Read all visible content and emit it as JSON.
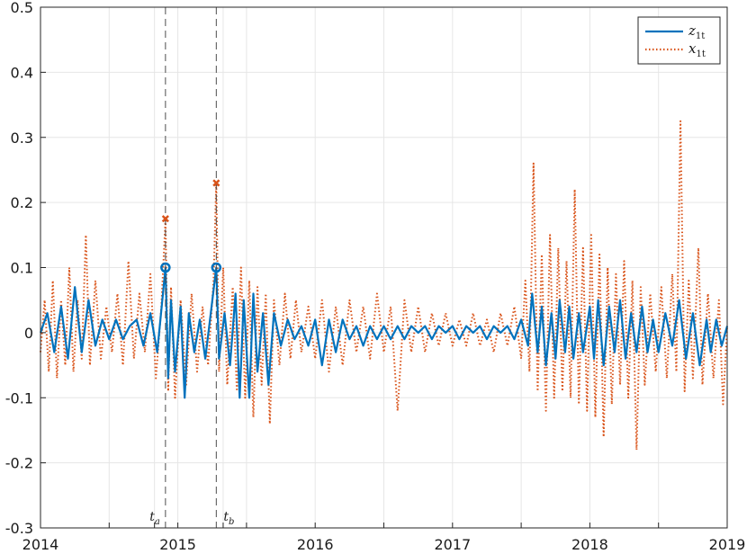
{
  "chart_data": {
    "type": "line",
    "x_start": 2014,
    "x_end": 2019,
    "ylim": [
      -0.3,
      0.5
    ],
    "xticks": [
      {
        "value": 2014,
        "label": "2014"
      },
      {
        "value": 2015,
        "label": "2015"
      },
      {
        "value": 2016,
        "label": "2016"
      },
      {
        "value": 2017,
        "label": "2017"
      },
      {
        "value": 2018,
        "label": "2018"
      },
      {
        "value": 2019,
        "label": "2019"
      }
    ],
    "minor_xticks": [
      2014.5,
      2014.83,
      2015.33,
      2015.5,
      2016.5,
      2017.5,
      2018.5
    ],
    "yticks": [
      {
        "value": -0.3,
        "label": "-0.3"
      },
      {
        "value": -0.2,
        "label": "-0.2"
      },
      {
        "value": -0.1,
        "label": "-0.1"
      },
      {
        "value": 0,
        "label": "0"
      },
      {
        "value": 0.1,
        "label": "0.1"
      },
      {
        "value": 0.2,
        "label": "0.2"
      },
      {
        "value": 0.3,
        "label": "0.3"
      },
      {
        "value": 0.4,
        "label": "0.4"
      },
      {
        "value": 0.5,
        "label": "0.5"
      }
    ],
    "grid": true,
    "legend_position": "top-right",
    "series": [
      {
        "name_base": "z",
        "name_sub": "1t",
        "color": "#0072BD",
        "style": "solid",
        "points": [
          [
            2014.0,
            0.0
          ],
          [
            2014.05,
            0.03
          ],
          [
            2014.1,
            -0.03
          ],
          [
            2014.15,
            0.04
          ],
          [
            2014.2,
            -0.04
          ],
          [
            2014.25,
            0.07
          ],
          [
            2014.3,
            -0.03
          ],
          [
            2014.35,
            0.05
          ],
          [
            2014.4,
            -0.02
          ],
          [
            2014.45,
            0.02
          ],
          [
            2014.5,
            -0.01
          ],
          [
            2014.55,
            0.02
          ],
          [
            2014.6,
            -0.01
          ],
          [
            2014.65,
            0.01
          ],
          [
            2014.7,
            0.02
          ],
          [
            2014.75,
            -0.02
          ],
          [
            2014.8,
            0.03
          ],
          [
            2014.85,
            -0.03
          ],
          [
            2014.91,
            0.1
          ],
          [
            2014.93,
            -0.07
          ],
          [
            2014.95,
            0.05
          ],
          [
            2014.98,
            -0.06
          ],
          [
            2015.02,
            0.04
          ],
          [
            2015.05,
            -0.1
          ],
          [
            2015.08,
            0.03
          ],
          [
            2015.12,
            -0.03
          ],
          [
            2015.16,
            0.02
          ],
          [
            2015.2,
            -0.04
          ],
          [
            2015.24,
            0.03
          ],
          [
            2015.28,
            0.1
          ],
          [
            2015.3,
            -0.04
          ],
          [
            2015.34,
            0.03
          ],
          [
            2015.38,
            -0.05
          ],
          [
            2015.42,
            0.06
          ],
          [
            2015.45,
            -0.1
          ],
          [
            2015.48,
            0.05
          ],
          [
            2015.52,
            -0.1
          ],
          [
            2015.55,
            0.06
          ],
          [
            2015.58,
            -0.06
          ],
          [
            2015.62,
            0.03
          ],
          [
            2015.66,
            -0.08
          ],
          [
            2015.7,
            0.03
          ],
          [
            2015.75,
            -0.02
          ],
          [
            2015.8,
            0.02
          ],
          [
            2015.85,
            -0.01
          ],
          [
            2015.9,
            0.01
          ],
          [
            2015.95,
            -0.02
          ],
          [
            2016.0,
            0.02
          ],
          [
            2016.05,
            -0.05
          ],
          [
            2016.1,
            0.02
          ],
          [
            2016.15,
            -0.03
          ],
          [
            2016.2,
            0.02
          ],
          [
            2016.25,
            -0.01
          ],
          [
            2016.3,
            0.01
          ],
          [
            2016.35,
            -0.02
          ],
          [
            2016.4,
            0.01
          ],
          [
            2016.45,
            -0.01
          ],
          [
            2016.5,
            0.01
          ],
          [
            2016.55,
            -0.01
          ],
          [
            2016.6,
            0.01
          ],
          [
            2016.65,
            -0.01
          ],
          [
            2016.7,
            0.01
          ],
          [
            2016.75,
            0.0
          ],
          [
            2016.8,
            0.01
          ],
          [
            2016.85,
            -0.01
          ],
          [
            2016.9,
            0.01
          ],
          [
            2016.95,
            0.0
          ],
          [
            2017.0,
            0.01
          ],
          [
            2017.05,
            -0.01
          ],
          [
            2017.1,
            0.01
          ],
          [
            2017.15,
            0.0
          ],
          [
            2017.2,
            0.01
          ],
          [
            2017.25,
            -0.01
          ],
          [
            2017.3,
            0.01
          ],
          [
            2017.35,
            0.0
          ],
          [
            2017.4,
            0.01
          ],
          [
            2017.45,
            -0.01
          ],
          [
            2017.5,
            0.02
          ],
          [
            2017.55,
            -0.02
          ],
          [
            2017.58,
            0.06
          ],
          [
            2017.62,
            -0.03
          ],
          [
            2017.65,
            0.04
          ],
          [
            2017.68,
            -0.05
          ],
          [
            2017.72,
            0.03
          ],
          [
            2017.75,
            -0.04
          ],
          [
            2017.78,
            0.05
          ],
          [
            2017.82,
            -0.03
          ],
          [
            2017.85,
            0.04
          ],
          [
            2017.88,
            -0.04
          ],
          [
            2017.92,
            0.03
          ],
          [
            2017.95,
            -0.03
          ],
          [
            2018.0,
            0.04
          ],
          [
            2018.03,
            -0.04
          ],
          [
            2018.06,
            0.05
          ],
          [
            2018.1,
            -0.05
          ],
          [
            2018.14,
            0.04
          ],
          [
            2018.18,
            -0.03
          ],
          [
            2018.22,
            0.05
          ],
          [
            2018.26,
            -0.04
          ],
          [
            2018.3,
            0.03
          ],
          [
            2018.34,
            -0.03
          ],
          [
            2018.38,
            0.04
          ],
          [
            2018.42,
            -0.03
          ],
          [
            2018.46,
            0.02
          ],
          [
            2018.5,
            -0.03
          ],
          [
            2018.55,
            0.03
          ],
          [
            2018.6,
            -0.02
          ],
          [
            2018.65,
            0.05
          ],
          [
            2018.7,
            -0.04
          ],
          [
            2018.75,
            0.03
          ],
          [
            2018.8,
            -0.05
          ],
          [
            2018.85,
            0.02
          ],
          [
            2018.88,
            -0.03
          ],
          [
            2018.92,
            0.02
          ],
          [
            2018.96,
            -0.02
          ],
          [
            2019.0,
            0.01
          ]
        ]
      },
      {
        "name_base": "x",
        "name_sub": "1t",
        "color": "#D95319",
        "style": "dotted",
        "points": [
          [
            2014.0,
            -0.03
          ],
          [
            2014.03,
            0.05
          ],
          [
            2014.06,
            -0.06
          ],
          [
            2014.09,
            0.08
          ],
          [
            2014.12,
            -0.07
          ],
          [
            2014.15,
            0.05
          ],
          [
            2014.18,
            -0.05
          ],
          [
            2014.21,
            0.1
          ],
          [
            2014.24,
            -0.06
          ],
          [
            2014.27,
            0.05
          ],
          [
            2014.3,
            -0.04
          ],
          [
            2014.33,
            0.15
          ],
          [
            2014.36,
            -0.05
          ],
          [
            2014.4,
            0.08
          ],
          [
            2014.44,
            -0.04
          ],
          [
            2014.48,
            0.04
          ],
          [
            2014.52,
            -0.03
          ],
          [
            2014.56,
            0.06
          ],
          [
            2014.6,
            -0.05
          ],
          [
            2014.64,
            0.11
          ],
          [
            2014.68,
            -0.04
          ],
          [
            2014.72,
            0.06
          ],
          [
            2014.76,
            -0.03
          ],
          [
            2014.8,
            0.09
          ],
          [
            2014.84,
            -0.07
          ],
          [
            2014.88,
            0.04
          ],
          [
            2014.91,
            0.175
          ],
          [
            2014.93,
            -0.09
          ],
          [
            2014.95,
            0.07
          ],
          [
            2014.98,
            -0.1
          ],
          [
            2015.02,
            0.05
          ],
          [
            2015.06,
            -0.08
          ],
          [
            2015.1,
            0.06
          ],
          [
            2015.14,
            -0.06
          ],
          [
            2015.18,
            0.04
          ],
          [
            2015.22,
            -0.05
          ],
          [
            2015.26,
            0.08
          ],
          [
            2015.28,
            0.23
          ],
          [
            2015.3,
            -0.06
          ],
          [
            2015.33,
            0.1
          ],
          [
            2015.36,
            -0.08
          ],
          [
            2015.4,
            0.07
          ],
          [
            2015.43,
            -0.09
          ],
          [
            2015.46,
            0.1
          ],
          [
            2015.49,
            -0.1
          ],
          [
            2015.52,
            0.08
          ],
          [
            2015.55,
            -0.13
          ],
          [
            2015.58,
            0.07
          ],
          [
            2015.61,
            -0.08
          ],
          [
            2015.64,
            0.06
          ],
          [
            2015.67,
            -0.14
          ],
          [
            2015.7,
            0.05
          ],
          [
            2015.74,
            -0.05
          ],
          [
            2015.78,
            0.06
          ],
          [
            2015.82,
            -0.04
          ],
          [
            2015.86,
            0.05
          ],
          [
            2015.9,
            -0.03
          ],
          [
            2015.95,
            0.04
          ],
          [
            2016.0,
            -0.04
          ],
          [
            2016.05,
            0.05
          ],
          [
            2016.1,
            -0.06
          ],
          [
            2016.15,
            0.04
          ],
          [
            2016.2,
            -0.05
          ],
          [
            2016.25,
            0.05
          ],
          [
            2016.3,
            -0.03
          ],
          [
            2016.35,
            0.04
          ],
          [
            2016.4,
            -0.04
          ],
          [
            2016.45,
            0.06
          ],
          [
            2016.5,
            -0.03
          ],
          [
            2016.55,
            0.04
          ],
          [
            2016.6,
            -0.12
          ],
          [
            2016.65,
            0.05
          ],
          [
            2016.7,
            -0.03
          ],
          [
            2016.75,
            0.04
          ],
          [
            2016.8,
            -0.03
          ],
          [
            2016.85,
            0.03
          ],
          [
            2016.9,
            -0.02
          ],
          [
            2016.95,
            0.03
          ],
          [
            2017.0,
            -0.02
          ],
          [
            2017.05,
            0.02
          ],
          [
            2017.1,
            -0.02
          ],
          [
            2017.15,
            0.03
          ],
          [
            2017.2,
            -0.02
          ],
          [
            2017.25,
            0.02
          ],
          [
            2017.3,
            -0.03
          ],
          [
            2017.35,
            0.03
          ],
          [
            2017.4,
            -0.02
          ],
          [
            2017.45,
            0.04
          ],
          [
            2017.5,
            -0.04
          ],
          [
            2017.53,
            0.08
          ],
          [
            2017.56,
            -0.06
          ],
          [
            2017.59,
            0.26
          ],
          [
            2017.62,
            -0.09
          ],
          [
            2017.65,
            0.12
          ],
          [
            2017.68,
            -0.12
          ],
          [
            2017.71,
            0.15
          ],
          [
            2017.74,
            -0.1
          ],
          [
            2017.77,
            0.13
          ],
          [
            2017.8,
            -0.09
          ],
          [
            2017.83,
            0.11
          ],
          [
            2017.86,
            -0.1
          ],
          [
            2017.89,
            0.22
          ],
          [
            2017.92,
            -0.11
          ],
          [
            2017.95,
            0.13
          ],
          [
            2017.98,
            -0.12
          ],
          [
            2018.01,
            0.15
          ],
          [
            2018.04,
            -0.13
          ],
          [
            2018.07,
            0.12
          ],
          [
            2018.1,
            -0.16
          ],
          [
            2018.13,
            0.1
          ],
          [
            2018.16,
            -0.11
          ],
          [
            2018.19,
            0.09
          ],
          [
            2018.22,
            -0.08
          ],
          [
            2018.25,
            0.11
          ],
          [
            2018.28,
            -0.1
          ],
          [
            2018.31,
            0.08
          ],
          [
            2018.34,
            -0.18
          ],
          [
            2018.37,
            0.07
          ],
          [
            2018.4,
            -0.08
          ],
          [
            2018.44,
            0.06
          ],
          [
            2018.48,
            -0.06
          ],
          [
            2018.52,
            0.07
          ],
          [
            2018.56,
            -0.07
          ],
          [
            2018.6,
            0.09
          ],
          [
            2018.63,
            -0.06
          ],
          [
            2018.66,
            0.325
          ],
          [
            2018.69,
            -0.09
          ],
          [
            2018.72,
            0.08
          ],
          [
            2018.75,
            -0.07
          ],
          [
            2018.79,
            0.13
          ],
          [
            2018.82,
            -0.08
          ],
          [
            2018.86,
            0.06
          ],
          [
            2018.9,
            -0.07
          ],
          [
            2018.94,
            0.05
          ],
          [
            2018.97,
            -0.11
          ],
          [
            2019.0,
            0.01
          ]
        ]
      }
    ],
    "markers": [
      {
        "label_base": "t",
        "label_sub": "a",
        "x": 2014.91,
        "o_y": 0.1,
        "x_y": 0.175
      },
      {
        "label_base": "t",
        "label_sub": "b",
        "x": 2015.28,
        "o_y": 0.1,
        "x_y": 0.23
      }
    ]
  }
}
